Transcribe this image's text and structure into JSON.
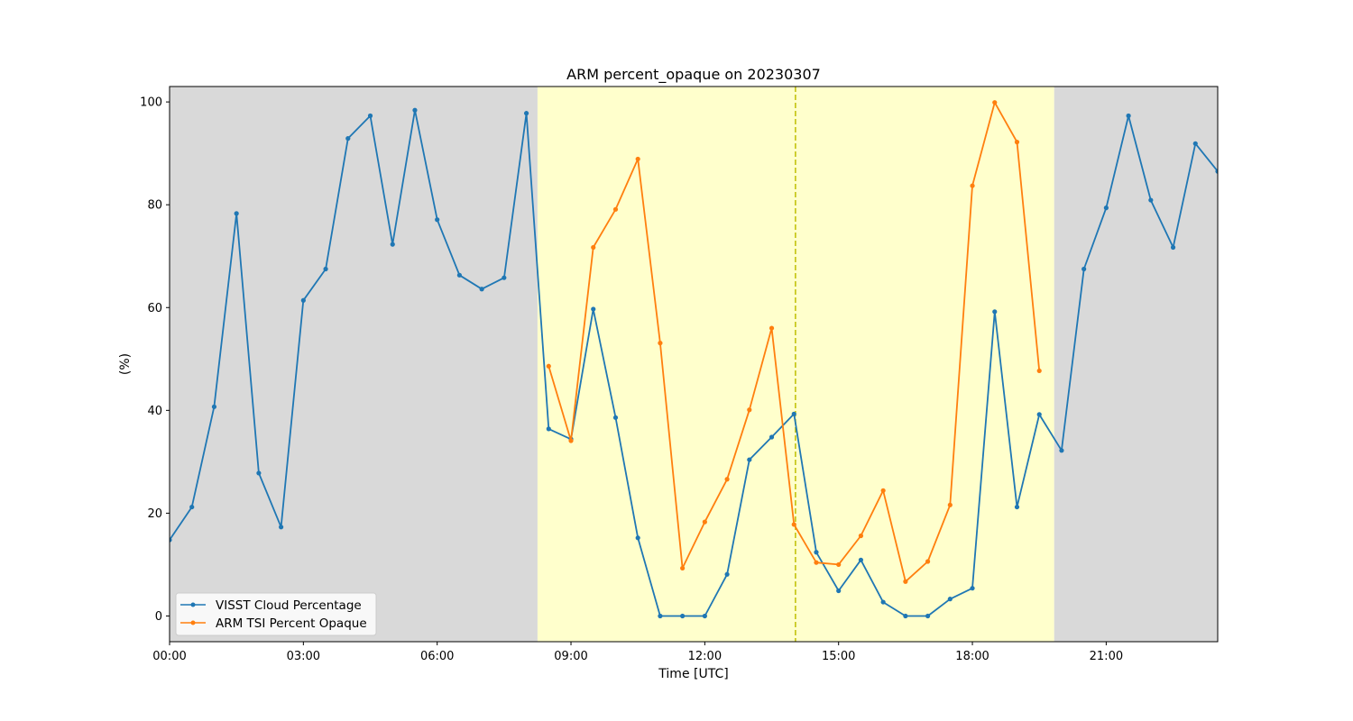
{
  "chart_data": {
    "type": "line",
    "title": "ARM percent_opaque on 20230307",
    "xlabel": "Time [UTC]",
    "ylabel": "(%)",
    "xlim": [
      "00:00",
      "23:30"
    ],
    "ylim": [
      -5,
      103
    ],
    "xticks": [
      "00:00",
      "03:00",
      "06:00",
      "09:00",
      "12:00",
      "15:00",
      "18:00",
      "21:00"
    ],
    "yticks": [
      0,
      20,
      40,
      60,
      80,
      100
    ],
    "grid": false,
    "legend_position": "lower-left",
    "shaded_regions": [
      {
        "start": "00:00",
        "end": "08:15",
        "color": "#d9d9d9"
      },
      {
        "start": "08:15",
        "end": "19:50",
        "color": "#ffffcc"
      },
      {
        "start": "19:50",
        "end": "23:30",
        "color": "#d9d9d9"
      }
    ],
    "vertical_line": {
      "x": "14:02",
      "color": "#bfbf00",
      "style": "dashed"
    },
    "series": [
      {
        "name": "VISST Cloud Percentage",
        "color": "#1f77b4",
        "x": [
          "00:00",
          "00:30",
          "01:00",
          "01:30",
          "02:00",
          "02:30",
          "03:00",
          "03:30",
          "04:00",
          "04:30",
          "05:00",
          "05:30",
          "06:00",
          "06:30",
          "07:00",
          "07:30",
          "08:00",
          "08:30",
          "09:00",
          "09:30",
          "10:00",
          "10:30",
          "11:00",
          "11:30",
          "12:00",
          "12:30",
          "13:00",
          "13:30",
          "14:00",
          "14:30",
          "15:00",
          "15:30",
          "16:00",
          "16:30",
          "17:00",
          "17:30",
          "18:00",
          "18:30",
          "19:00",
          "19:30",
          "20:00",
          "20:30",
          "21:00",
          "21:30",
          "22:00",
          "22:30",
          "23:00",
          "23:30"
        ],
        "values": [
          14.8,
          21.2,
          40.7,
          78.3,
          27.8,
          17.3,
          61.4,
          67.5,
          92.9,
          97.3,
          72.3,
          98.4,
          77.1,
          66.3,
          63.6,
          65.8,
          97.8,
          36.4,
          34.4,
          59.7,
          38.6,
          15.2,
          0,
          0,
          0,
          8.1,
          30.4,
          34.8,
          39.3,
          12.4,
          4.9,
          10.9,
          2.7,
          0,
          0,
          3.3,
          5.4,
          59.2,
          21.2,
          39.2,
          32.2,
          67.5,
          79.4,
          97.3,
          80.9,
          71.7,
          91.9,
          86.5
        ]
      },
      {
        "name": "ARM TSI Percent Opaque",
        "color": "#ff7f0e",
        "x": [
          "08:30",
          "09:00",
          "09:30",
          "10:00",
          "10:30",
          "11:00",
          "11:30",
          "12:00",
          "12:30",
          "13:00",
          "13:30",
          "14:00",
          "14:30",
          "15:00",
          "15:30",
          "16:00",
          "16:30",
          "17:00",
          "17:30",
          "18:00",
          "18:30",
          "19:00",
          "19:30"
        ],
        "values": [
          48.6,
          34.1,
          71.7,
          79.1,
          88.9,
          53.1,
          9.3,
          18.3,
          26.6,
          40.1,
          56.0,
          17.8,
          10.4,
          10.0,
          15.6,
          24.4,
          6.7,
          10.6,
          21.6,
          83.7,
          99.9,
          92.2,
          47.7
        ]
      }
    ]
  }
}
